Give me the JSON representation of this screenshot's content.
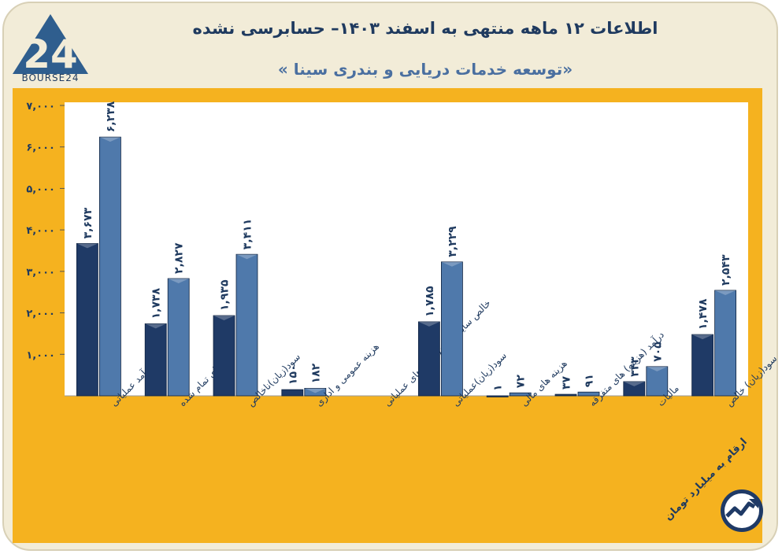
{
  "header": {
    "title": "اطلاعات ۱۲ ماهه منتهی به اسفند ۱۴۰۳– حسابرسی نشده",
    "subtitle": "«توسعه خدمات دریایی و بندری سینا »",
    "logo_text": "BOURSE24"
  },
  "footer": {
    "unit_note": "ارقام به میلیارد تومان"
  },
  "colors": {
    "frame_orange": "#f5b21f",
    "plot_bg": "#ffffff",
    "series_dark": "#1f3a66",
    "series_light": "#4f79ab",
    "text_navy": "#1f3a5f"
  },
  "chart_data": {
    "type": "bar",
    "title": "",
    "xlabel": "",
    "ylabel": "",
    "ylim": [
      0,
      7000
    ],
    "yticks": [
      1000,
      2000,
      3000,
      4000,
      5000,
      6000,
      7000
    ],
    "ytick_labels": [
      "۱,۰۰۰",
      "۲,۰۰۰",
      "۳,۰۰۰",
      "۴,۰۰۰",
      "۵,۰۰۰",
      "۶,۰۰۰",
      "۷,۰۰۰"
    ],
    "grid": false,
    "legend": "none",
    "categories": [
      "درآمد عملیاتی",
      "بهای تمام شده",
      "سود(زیان)ناخالص",
      "هزینه عمومی و اداری",
      "خالص سایر درآمد(هزینه)های عملیاتی",
      "سود(زیان)عملیاتی",
      "هزینه های مالی",
      "درآمد (هزینه) های متفرقه",
      "مالیات",
      "سود(زیان) خالص"
    ],
    "series": [
      {
        "values": [
          3673,
          1738,
          1935,
          150,
          0,
          1785,
          1,
          37,
          343,
          1478
        ],
        "labels": [
          "۳,۶۷۳",
          "۱,۷۳۸",
          "۱,۹۳۵",
          "۱۵۰",
          "",
          "۱,۷۸۵",
          "۱",
          "۳۷",
          "۳۴۳",
          "۱,۴۷۸"
        ]
      },
      {
        "values": [
          6238,
          2827,
          3411,
          182,
          0,
          3229,
          72,
          91,
          705,
          2543
        ],
        "labels": [
          "۶,۲۳۸",
          "۲,۸۲۷",
          "۳,۴۱۱",
          "۱۸۲",
          "",
          "۳,۲۲۹",
          "۷۲",
          "۹۱",
          "۷۰۵",
          "۲,۵۴۳"
        ]
      }
    ]
  }
}
